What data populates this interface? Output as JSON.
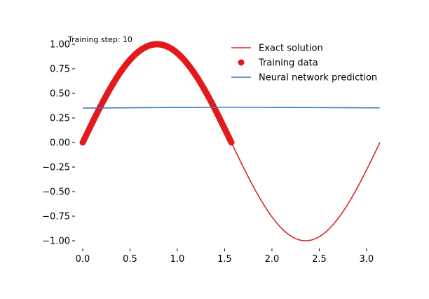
{
  "chart_data": {
    "type": "line",
    "annotation": "Training step: 10",
    "xlim": [
      0,
      3.14159
    ],
    "ylim": [
      -1.0,
      1.0
    ],
    "x_ticks": [
      0.0,
      0.5,
      1.0,
      1.5,
      2.0,
      2.5,
      3.0
    ],
    "x_tick_labels": [
      "0.0",
      "0.5",
      "1.0",
      "1.5",
      "2.0",
      "2.5",
      "3.0"
    ],
    "y_ticks": [
      1.0,
      0.75,
      0.5,
      0.25,
      0.0,
      -0.25,
      -0.5,
      -0.75,
      -1.0
    ],
    "y_tick_labels": [
      "1.00",
      "0.75",
      "0.50",
      "0.25",
      "0.00",
      "−0.25",
      "−0.50",
      "−0.75",
      "−1.00"
    ],
    "grid": false,
    "legend_position": "top-right",
    "series": [
      {
        "name": "Exact solution",
        "kind": "line",
        "color": "#d62728",
        "function": "sin(2x)",
        "x_range": [
          0,
          3.14159
        ]
      },
      {
        "name": "Training data",
        "kind": "scatter",
        "color": "#e31a1c",
        "function": "sin(2x)",
        "x_range": [
          0,
          1.5708
        ]
      },
      {
        "name": "Neural network prediction",
        "kind": "line",
        "color": "#3a7ab5",
        "x": [
          0.0,
          0.5,
          1.0,
          1.5,
          2.0,
          2.5,
          3.14
        ],
        "y": [
          0.35,
          0.353,
          0.357,
          0.358,
          0.357,
          0.355,
          0.352
        ]
      }
    ]
  }
}
